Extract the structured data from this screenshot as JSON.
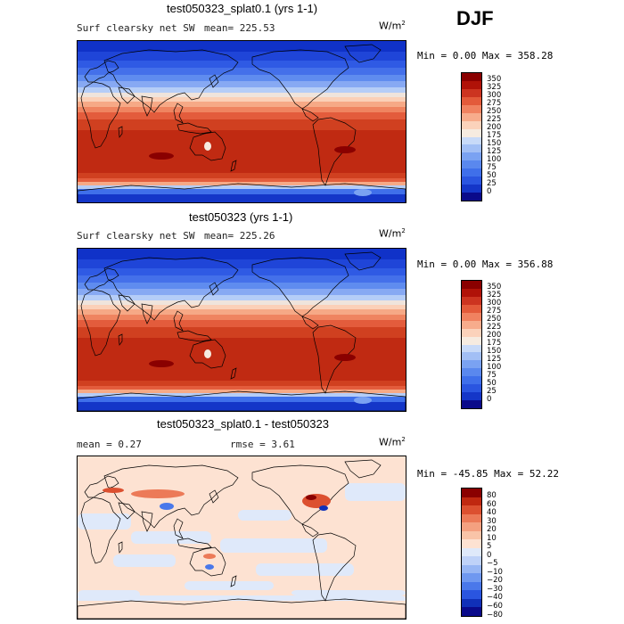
{
  "season": "DJF",
  "panels": [
    {
      "title": "test050323_splat0.1 (yrs 1-1)",
      "variable": "Surf clearsky net SW",
      "stat": "mean= 225.53",
      "units": "W/m",
      "units_exp": "2",
      "minmax": "Min =    0.00 Max = 358.28"
    },
    {
      "title": "test050323 (yrs 1-1)",
      "variable": "Surf clearsky net SW",
      "stat": "mean= 225.26",
      "units": "W/m",
      "units_exp": "2",
      "minmax": "Min =    0.00 Max = 356.88"
    },
    {
      "title": "test050323_splat0.1 - test050323",
      "stat_mean": "mean =    0.27",
      "stat_rmse": "rmse =    3.61",
      "units": "W/m",
      "units_exp": "2",
      "minmax": "Min = -45.85 Max =  52.22"
    }
  ],
  "chart_data": [
    {
      "type": "heatmap",
      "title": "test050323_splat0.1 (yrs 1-1)",
      "subtitle": "Surf clearsky net SW",
      "mean": 225.53,
      "min": 0.0,
      "max": 358.28,
      "units": "W/m2",
      "colorbar_levels": [
        0,
        25,
        50,
        75,
        100,
        125,
        150,
        175,
        200,
        225,
        250,
        275,
        300,
        325,
        350
      ],
      "colorbar_colors": [
        "#0a0a8a",
        "#1436c8",
        "#2a55e0",
        "#3f6fea",
        "#5a88ee",
        "#7aa2f2",
        "#a2bff5",
        "#c8daf8",
        "#f6ebe0",
        "#fbd2bb",
        "#f7ac8c",
        "#f08260",
        "#e35a3a",
        "#cc3420",
        "#b01208",
        "#8a0000"
      ]
    },
    {
      "type": "heatmap",
      "title": "test050323 (yrs 1-1)",
      "subtitle": "Surf clearsky net SW",
      "mean": 225.26,
      "min": 0.0,
      "max": 356.88,
      "units": "W/m2",
      "colorbar_levels": [
        0,
        25,
        50,
        75,
        100,
        125,
        150,
        175,
        200,
        225,
        250,
        275,
        300,
        325,
        350
      ],
      "colorbar_colors": [
        "#0a0a8a",
        "#1436c8",
        "#2a55e0",
        "#3f6fea",
        "#5a88ee",
        "#7aa2f2",
        "#a2bff5",
        "#c8daf8",
        "#f6ebe0",
        "#fbd2bb",
        "#f7ac8c",
        "#f08260",
        "#e35a3a",
        "#cc3420",
        "#b01208",
        "#8a0000"
      ]
    },
    {
      "type": "heatmap",
      "title": "test050323_splat0.1 - test050323",
      "mean": 0.27,
      "rmse": 3.61,
      "min": -45.85,
      "max": 52.22,
      "units": "W/m2",
      "colorbar_levels": [
        -80,
        -60,
        -40,
        -30,
        -20,
        -10,
        -5,
        0,
        5,
        10,
        20,
        30,
        40,
        60,
        80
      ],
      "colorbar_colors": [
        "#0a0a8a",
        "#1030b8",
        "#2a55e0",
        "#4a78ea",
        "#6f98f0",
        "#97b6f4",
        "#bfd2f8",
        "#dfe9fa",
        "#fde2d2",
        "#f9c4a8",
        "#f4a080",
        "#ec7a58",
        "#dc5030",
        "#c02810",
        "#8a0000"
      ]
    }
  ]
}
